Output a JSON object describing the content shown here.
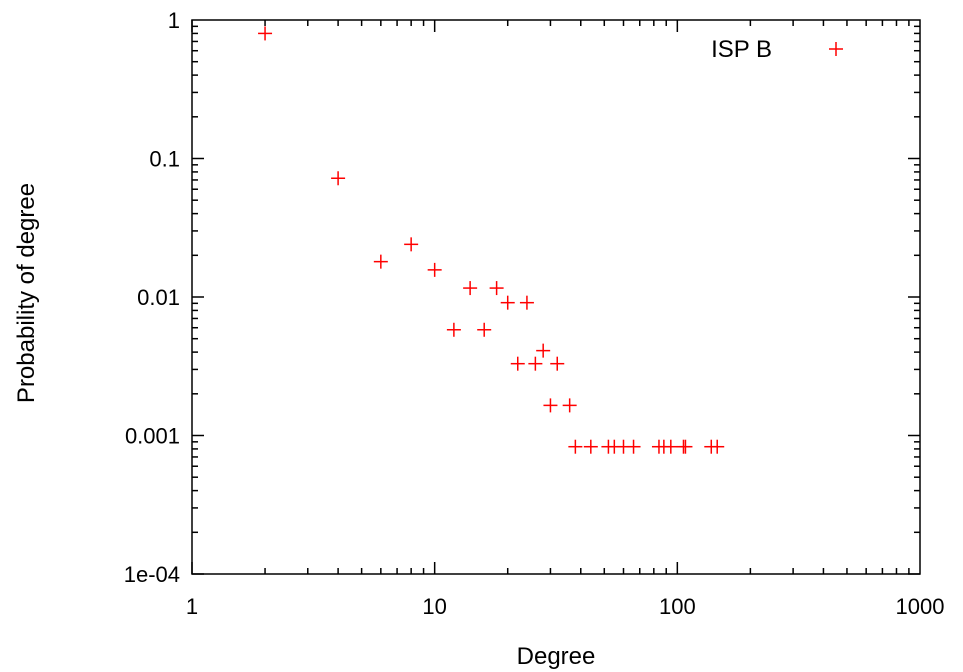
{
  "chart_data": {
    "type": "scatter",
    "title": "",
    "xlabel": "Degree",
    "ylabel": "Probability of degree",
    "x_scale": "log",
    "y_scale": "log",
    "xlim": [
      1,
      1000
    ],
    "ylim": [
      0.0001,
      1
    ],
    "x_ticks": [
      "1",
      "10",
      "100",
      "1000"
    ],
    "y_ticks": [
      "1e-04",
      "0.001",
      "0.01",
      "0.1",
      "1"
    ],
    "grid": false,
    "legend_position": "top-right",
    "series": [
      {
        "name": "ISP B",
        "color": "#ff0000",
        "marker": "plus",
        "points": [
          [
            2,
            0.8
          ],
          [
            4,
            0.072
          ],
          [
            6,
            0.018
          ],
          [
            8,
            0.024
          ],
          [
            10,
            0.0157
          ],
          [
            12,
            0.0058
          ],
          [
            14,
            0.0116
          ],
          [
            16,
            0.0058
          ],
          [
            18,
            0.0116
          ],
          [
            20,
            0.0091
          ],
          [
            22,
            0.0033
          ],
          [
            24,
            0.0091
          ],
          [
            26,
            0.0033
          ],
          [
            28,
            0.0041
          ],
          [
            30,
            0.00165
          ],
          [
            32,
            0.0033
          ],
          [
            36,
            0.00165
          ],
          [
            38,
            0.00083
          ],
          [
            44,
            0.00083
          ],
          [
            52,
            0.00083
          ],
          [
            55,
            0.00083
          ],
          [
            60,
            0.00083
          ],
          [
            66,
            0.00083
          ],
          [
            84,
            0.00083
          ],
          [
            88,
            0.00083
          ],
          [
            94,
            0.00083
          ],
          [
            106,
            0.00083
          ],
          [
            108,
            0.00083
          ],
          [
            138,
            0.00083
          ],
          [
            146,
            0.00083
          ]
        ]
      }
    ]
  }
}
